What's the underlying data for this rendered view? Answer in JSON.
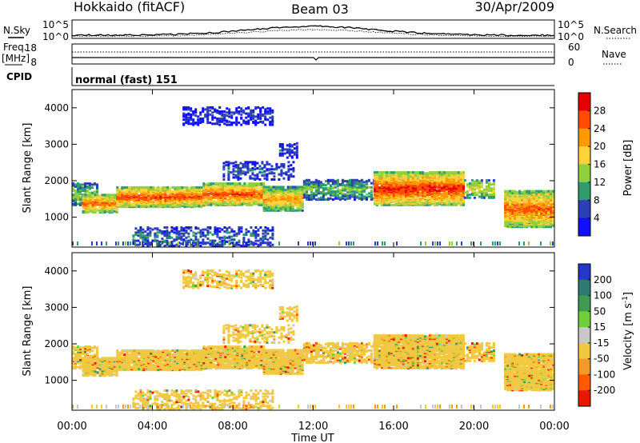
{
  "header": {
    "title": "Hokkaido (fitACF)",
    "beam": "Beam 03",
    "date": "30/Apr/2009"
  },
  "summary": {
    "nsky_label": "N.Sky",
    "nsearch_label": "N.Search",
    "noise_ticks": [
      "10^5",
      "10^0"
    ],
    "freq_label": "Freq.",
    "freq_unit": "[MHz]",
    "freq_ticks": [
      "18",
      "8"
    ],
    "nave_label": "Nave",
    "nave_ticks": [
      "60",
      "0"
    ],
    "cpid_label": "CPID",
    "cpid_value": "normal (fast) 151"
  },
  "chart_data": {
    "type": "heatmap",
    "xlabel": "Time UT",
    "x_ticks": [
      "00:00",
      "04:00",
      "08:00",
      "12:00",
      "16:00",
      "20:00",
      "00:00"
    ],
    "xlim_hours": [
      0,
      24
    ],
    "ylabel": "Slant Range [km]",
    "y_ticks": [
      1000,
      2000,
      3000,
      4000
    ],
    "ylim_km": [
      180,
      4500
    ],
    "power": {
      "colorbar_label": "Power [dB]",
      "ticks": [
        "28",
        "24",
        "20",
        "16",
        "12",
        "8",
        "4"
      ],
      "colors": [
        "#e60000",
        "#ff4d00",
        "#ff9a00",
        "#ffd23c",
        "#8fce3c",
        "#2f9c6e",
        "#2c3fb4",
        "#1010ff"
      ],
      "range_db": [
        0,
        32
      ]
    },
    "velocity": {
      "colorbar_label": "Velocity [m s^-1]",
      "ticks": [
        "200",
        "100",
        "50",
        "15",
        "-15",
        "-50",
        "-100",
        "-200"
      ],
      "colors": [
        "#2438c8",
        "#2f7a73",
        "#3e9c52",
        "#6fcf3a",
        "#c8c8c8",
        "#f2c840",
        "#f29a2a",
        "#ff5a00",
        "#e61800"
      ],
      "range_ms": [
        -250,
        250
      ]
    },
    "echo_bands": [
      {
        "t0": 0.0,
        "t1": 1.2,
        "r0": 1300,
        "r1": 1900,
        "power": 14
      },
      {
        "t0": 0.5,
        "t1": 2.2,
        "r0": 1100,
        "r1": 1600,
        "power": 25
      },
      {
        "t0": 2.2,
        "t1": 6.5,
        "r0": 1250,
        "r1": 1800,
        "power": 27
      },
      {
        "t0": 6.5,
        "t1": 9.5,
        "r0": 1300,
        "r1": 1900,
        "power": 27
      },
      {
        "t0": 9.5,
        "t1": 11.5,
        "r0": 1150,
        "r1": 1800,
        "power": 22
      },
      {
        "t0": 11.5,
        "t1": 15.0,
        "r0": 1450,
        "r1": 2000,
        "power": 13
      },
      {
        "t0": 15.0,
        "t1": 19.5,
        "r0": 1300,
        "r1": 2200,
        "power": 29
      },
      {
        "t0": 19.5,
        "t1": 21.0,
        "r0": 1500,
        "r1": 2000,
        "power": 18
      },
      {
        "t0": 21.5,
        "t1": 24.0,
        "r0": 700,
        "r1": 1700,
        "power": 26
      },
      {
        "t0": 3.0,
        "t1": 10.0,
        "r0": 180,
        "r1": 700,
        "power": 8
      },
      {
        "t0": 7.5,
        "t1": 11.0,
        "r0": 2000,
        "r1": 2500,
        "power": 7
      },
      {
        "t0": 10.3,
        "t1": 11.2,
        "r0": 2600,
        "r1": 3000,
        "power": 6
      },
      {
        "t0": 5.5,
        "t1": 10.0,
        "r0": 3500,
        "r1": 4000,
        "power": 5
      }
    ]
  }
}
